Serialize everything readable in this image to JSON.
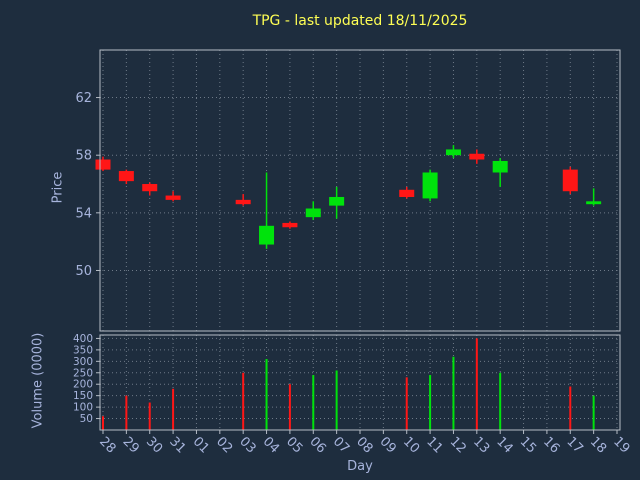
{
  "chart_data": {
    "type": "candlestick",
    "title": "TPG - last updated 18/11/2025",
    "xlabel": "Day",
    "ylabel_price": "Price",
    "ylabel_volume": "Volume (0000)",
    "price_ticks": [
      50,
      54,
      58,
      62
    ],
    "volume_ticks": [
      50,
      100,
      150,
      200,
      250,
      300,
      350,
      400
    ],
    "price_lim": [
      45.8,
      65.3
    ],
    "volume_lim": [
      0,
      415
    ],
    "grid": true,
    "days": [
      "28",
      "29",
      "30",
      "31",
      "01",
      "02",
      "03",
      "04",
      "05",
      "06",
      "07",
      "08",
      "09",
      "10",
      "11",
      "12",
      "13",
      "14",
      "15",
      "16",
      "17",
      "18",
      "19"
    ],
    "candles": [
      {
        "day": "28",
        "open": 57.7,
        "high": 57.9,
        "low": 56.9,
        "close": 57.0,
        "volume": 60
      },
      {
        "day": "29",
        "open": 56.9,
        "high": 57.0,
        "low": 56.0,
        "close": 56.2,
        "volume": 150
      },
      {
        "day": "30",
        "open": 56.0,
        "high": 56.1,
        "low": 55.2,
        "close": 55.5,
        "volume": 120
      },
      {
        "day": "31",
        "open": 55.2,
        "high": 55.5,
        "low": 54.8,
        "close": 54.9,
        "volume": 180
      },
      {
        "day": "03",
        "open": 54.9,
        "high": 55.3,
        "low": 54.5,
        "close": 54.6,
        "volume": 250
      },
      {
        "day": "04",
        "open": 51.8,
        "high": 56.8,
        "low": 51.5,
        "close": 53.1,
        "volume": 310
      },
      {
        "day": "05",
        "open": 53.3,
        "high": 53.4,
        "low": 52.9,
        "close": 53.0,
        "volume": 200
      },
      {
        "day": "06",
        "open": 53.7,
        "high": 54.8,
        "low": 53.5,
        "close": 54.3,
        "volume": 240
      },
      {
        "day": "07",
        "open": 54.5,
        "high": 55.8,
        "low": 53.6,
        "close": 55.1,
        "volume": 260
      },
      {
        "day": "10",
        "open": 55.6,
        "high": 55.8,
        "low": 55.0,
        "close": 55.1,
        "volume": 230
      },
      {
        "day": "11",
        "open": 55.0,
        "high": 57.0,
        "low": 54.8,
        "close": 56.8,
        "volume": 240
      },
      {
        "day": "12",
        "open": 58.0,
        "high": 58.7,
        "low": 57.8,
        "close": 58.4,
        "volume": 320
      },
      {
        "day": "13",
        "open": 58.1,
        "high": 58.4,
        "low": 57.4,
        "close": 57.7,
        "volume": 400
      },
      {
        "day": "14",
        "open": 56.8,
        "high": 57.8,
        "low": 55.8,
        "close": 57.6,
        "volume": 250
      },
      {
        "day": "17",
        "open": 57.0,
        "high": 57.2,
        "low": 55.3,
        "close": 55.5,
        "volume": 190
      },
      {
        "day": "18",
        "open": 54.6,
        "high": 55.7,
        "low": 54.5,
        "close": 54.8,
        "volume": 150
      }
    ],
    "colors": {
      "background": "#1e2d3e",
      "title": "#ffff54",
      "label": "#a7b4dc",
      "grid": "#6e7a88",
      "spine": "#b6bdc6",
      "up": "#00e30c",
      "down": "#ff1616"
    }
  }
}
